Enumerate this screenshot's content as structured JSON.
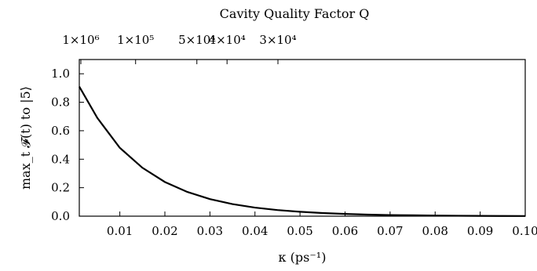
{
  "chart_data": {
    "type": "line",
    "xlabel": "κ (ps⁻¹)",
    "ylabel": "max_t 𝓕(t) to |5⟩",
    "top_axis_label": "Cavity Quality Factor Q",
    "xlim": [
      0.001,
      0.1
    ],
    "ylim": [
      0.0,
      1.1
    ],
    "x_ticks": [
      0.01,
      0.02,
      0.03,
      0.04,
      0.05,
      0.06,
      0.07,
      0.08,
      0.09,
      0.1
    ],
    "x_tick_labels": [
      "0.01",
      "0.02",
      "0.03",
      "0.04",
      "0.05",
      "0.06",
      "0.07",
      "0.08",
      "0.09",
      "0.10"
    ],
    "y_ticks": [
      0.0,
      0.2,
      0.4,
      0.6,
      0.8,
      1.0
    ],
    "y_tick_labels": [
      "0.0",
      "0.2",
      "0.4",
      "0.6",
      "0.8",
      "1.0"
    ],
    "top_ticks": [
      {
        "kappa": 0.00135,
        "label": "1×10⁶"
      },
      {
        "kappa": 0.0135,
        "label": "1×10⁵"
      },
      {
        "kappa": 0.0271,
        "label": "5×10⁴"
      },
      {
        "kappa": 0.0338,
        "label": "4×10⁴"
      },
      {
        "kappa": 0.0451,
        "label": "3×10⁴"
      }
    ],
    "series": [
      {
        "x": [
          0.001,
          0.005,
          0.01,
          0.015,
          0.02,
          0.025,
          0.03,
          0.035,
          0.04,
          0.045,
          0.05,
          0.055,
          0.06,
          0.065,
          0.07,
          0.075,
          0.08,
          0.085,
          0.09,
          0.095,
          0.1
        ],
        "y": [
          0.91,
          0.69,
          0.48,
          0.34,
          0.24,
          0.17,
          0.12,
          0.085,
          0.06,
          0.043,
          0.031,
          0.022,
          0.016,
          0.011,
          0.008,
          0.006,
          0.004,
          0.003,
          0.002,
          0.0015,
          0.001
        ]
      }
    ],
    "grid": false,
    "line_color": "#000000"
  }
}
